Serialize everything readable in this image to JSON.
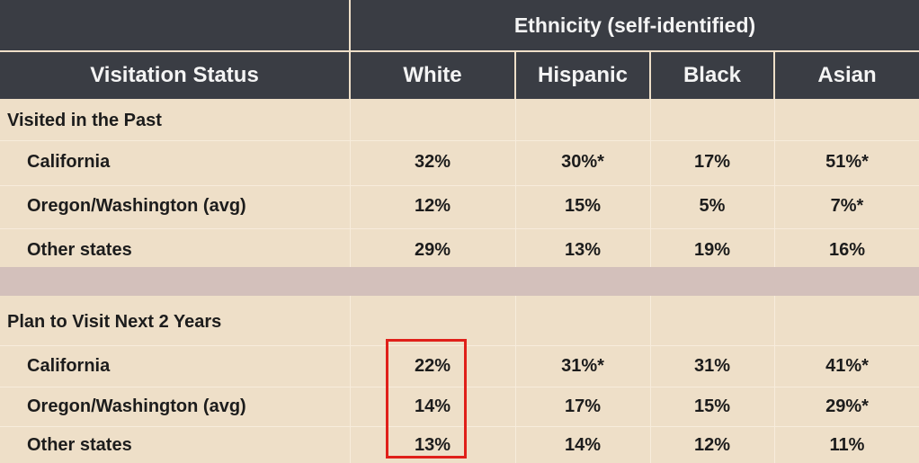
{
  "header": {
    "group_title": "Ethnicity (self-identified)",
    "row_header": "Visitation Status",
    "columns": [
      "White",
      "Hispanic",
      "Black",
      "Asian"
    ]
  },
  "sections": [
    {
      "title": "Visited in the Past",
      "rows": [
        {
          "label": "California",
          "values": [
            "32%",
            "30%*",
            "17%",
            "51%*"
          ]
        },
        {
          "label": "Oregon/Washington (avg)",
          "values": [
            "12%",
            "15%",
            "5%",
            "7%*"
          ]
        },
        {
          "label": "Other states",
          "values": [
            "29%",
            "13%",
            "19%",
            "16%"
          ]
        }
      ]
    },
    {
      "title": "Plan to Visit Next 2 Years",
      "rows": [
        {
          "label": "California",
          "values": [
            "22%",
            "31%*",
            "31%",
            "41%*"
          ]
        },
        {
          "label": "Oregon/Washington (avg)",
          "values": [
            "14%",
            "17%",
            "15%",
            "29%*"
          ]
        },
        {
          "label": "Other states",
          "values": [
            "13%",
            "14%",
            "12%",
            "11%"
          ]
        }
      ]
    }
  ],
  "colors": {
    "header_bg": "#3a3d44",
    "cell_bg": "#eedfc8",
    "highlight": "#e0201a"
  }
}
